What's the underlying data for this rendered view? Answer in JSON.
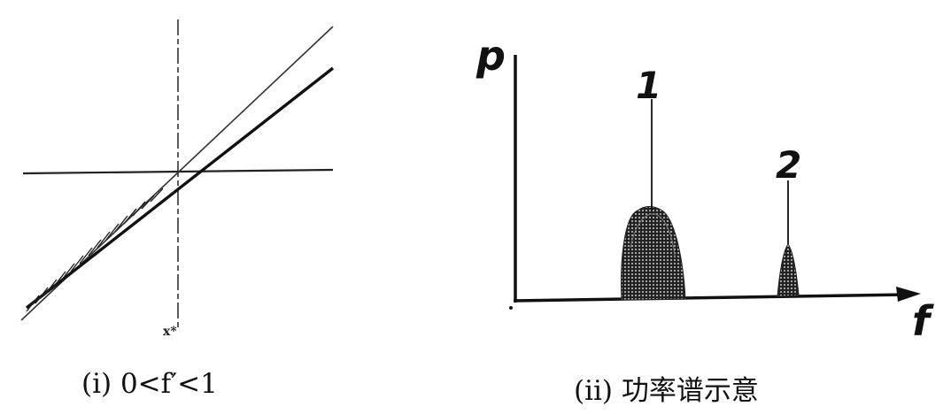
{
  "left_figure": {
    "caption": "(ⅰ) 0<f′<1",
    "tick_label": "x*"
  },
  "right_figure": {
    "caption": "(ⅱ) 功率谱示意",
    "y_axis_label": "p",
    "x_axis_label": "f",
    "peaks": [
      {
        "label": "1"
      },
      {
        "label": "2"
      }
    ]
  }
}
